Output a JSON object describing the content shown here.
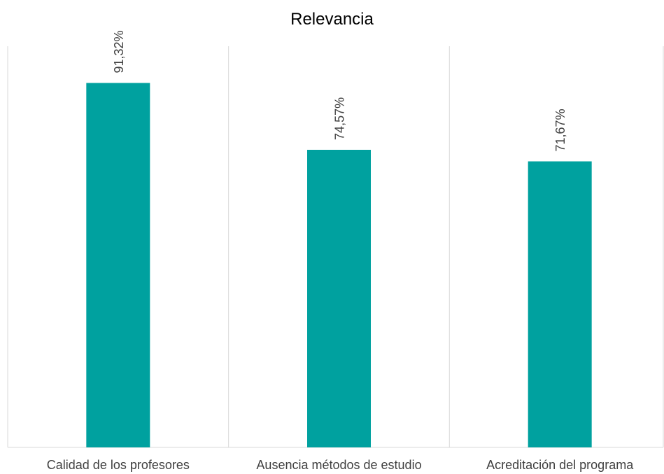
{
  "chart_data": {
    "type": "bar",
    "title": "Relevancia",
    "categories": [
      "Calidad de los profesores",
      "Ausencia métodos de estudio",
      "Acreditación del programa"
    ],
    "values": [
      91.32,
      74.57,
      71.67
    ],
    "data_labels": [
      "91,32%",
      "74,57%",
      "71,67%"
    ],
    "xlabel": "",
    "ylabel": "",
    "ylim": [
      0,
      100
    ],
    "grid": "vertical category separators",
    "legend": "none",
    "bar_color": "#00A19F",
    "axis_color": "#D9D9D9",
    "text_color": "#404040"
  }
}
